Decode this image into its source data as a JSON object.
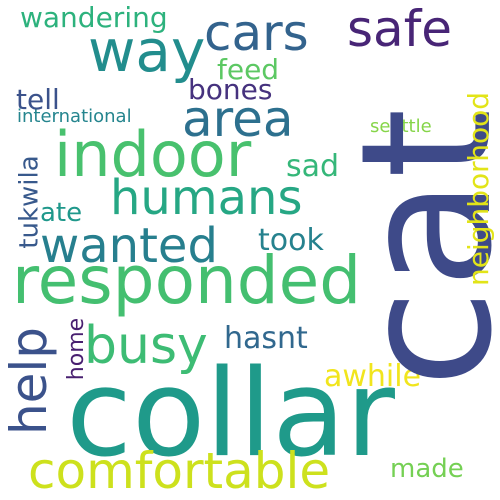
{
  "words": [
    {
      "text": "cat",
      "color": "#3e4a89"
    },
    {
      "text": "collar",
      "color": "#1f9a8a"
    },
    {
      "text": "responded",
      "color": "#44bf70"
    },
    {
      "text": "indoor",
      "color": "#48c16e"
    },
    {
      "text": "way",
      "color": "#228d8d"
    },
    {
      "text": "cars",
      "color": "#33638d"
    },
    {
      "text": "safe",
      "color": "#482576"
    },
    {
      "text": "area",
      "color": "#2d708e"
    },
    {
      "text": "humans",
      "color": "#26a784"
    },
    {
      "text": "wanted",
      "color": "#277f8e"
    },
    {
      "text": "busy",
      "color": "#3dbc74"
    },
    {
      "text": "comfortable",
      "color": "#cde11d"
    },
    {
      "text": "help",
      "color": "#3b528b"
    },
    {
      "text": "neighborhood",
      "color": "#e2e418"
    },
    {
      "text": "tukwila",
      "color": "#38598c"
    },
    {
      "text": "wandering",
      "color": "#2db27d"
    },
    {
      "text": "feed",
      "color": "#5cc863"
    },
    {
      "text": "bones",
      "color": "#46327e"
    },
    {
      "text": "tell",
      "color": "#3b528b"
    },
    {
      "text": "international",
      "color": "#25858e"
    },
    {
      "text": "sad",
      "color": "#35b779"
    },
    {
      "text": "took",
      "color": "#26828e"
    },
    {
      "text": "ate",
      "color": "#1f988b"
    },
    {
      "text": "hasnt",
      "color": "#31688e"
    },
    {
      "text": "home",
      "color": "#481f70"
    },
    {
      "text": "awhile",
      "color": "#f1e51d"
    },
    {
      "text": "made",
      "color": "#75d054"
    },
    {
      "text": "seattle",
      "color": "#86d549"
    }
  ]
}
